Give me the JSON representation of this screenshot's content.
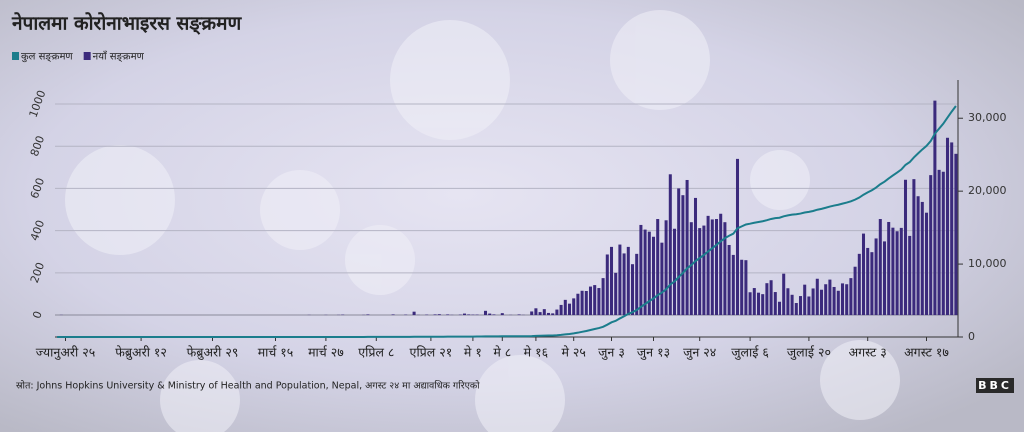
{
  "chart_data": {
    "type": "bar",
    "title": "नेपालमा कोरोनाभाइरस सङ्क्रमण",
    "source": "स्रोत: Johns Hopkins University & Ministry of Health and Population, Nepal, अगस्ट २४ मा अद्यावधिक गरिएको",
    "logo": "BBC",
    "legend": "top-left",
    "grid": true,
    "categories": [
      null,
      null,
      "ज्यानुअरी २५",
      null,
      null,
      null,
      null,
      null,
      null,
      null,
      null,
      null,
      null,
      null,
      null,
      null,
      null,
      null,
      null,
      null,
      "फेब्रुअरी १२",
      null,
      null,
      null,
      null,
      null,
      null,
      null,
      null,
      null,
      null,
      null,
      null,
      null,
      null,
      null,
      null,
      "फेब्रुअरी २९",
      null,
      null,
      null,
      null,
      null,
      null,
      null,
      null,
      null,
      null,
      null,
      null,
      null,
      null,
      "मार्च १५",
      null,
      null,
      null,
      null,
      null,
      null,
      null,
      null,
      null,
      null,
      null,
      "मार्च २७",
      null,
      null,
      null,
      null,
      null,
      null,
      null,
      null,
      null,
      null,
      null,
      "एप्रिल ८",
      null,
      null,
      null,
      null,
      null,
      null,
      null,
      null,
      null,
      null,
      null,
      null,
      "एप्रिल २१",
      null,
      null,
      null,
      null,
      null,
      null,
      null,
      null,
      null,
      "मे १",
      null,
      null,
      null,
      null,
      null,
      null,
      "मे ८",
      null,
      null,
      null,
      null,
      null,
      null,
      null,
      "मे १६",
      null,
      null,
      null,
      null,
      null,
      null,
      null,
      null,
      "मे २५",
      null,
      null,
      null,
      null,
      null,
      null,
      null,
      null,
      "जुन ३",
      null,
      null,
      null,
      null,
      null,
      null,
      null,
      null,
      null,
      "जुन १३",
      null,
      null,
      null,
      null,
      null,
      null,
      null,
      null,
      null,
      null,
      "जुन २४",
      null,
      null,
      null,
      null,
      null,
      null,
      null,
      null,
      null,
      null,
      null,
      "जुलाई ६",
      null,
      null,
      null,
      null,
      null,
      null,
      null,
      null,
      null,
      null,
      null,
      null,
      null,
      "जुलाई २०",
      null,
      null,
      null,
      null,
      null,
      null,
      null,
      null,
      null,
      null,
      null,
      null,
      null,
      "अगस्ट ३",
      null,
      null,
      null,
      null,
      null,
      null,
      null,
      null,
      null,
      null,
      null,
      null,
      null,
      "अगस्ट १७",
      null,
      null,
      null,
      null,
      null,
      null,
      null
    ],
    "series": [
      {
        "name": "कुल सङ्क्रमण",
        "color": "#1b7d8c",
        "type": "line",
        "axis": "y2",
        "values": [
          0,
          1,
          1,
          1,
          1,
          1,
          1,
          1,
          1,
          1,
          1,
          1,
          1,
          1,
          1,
          1,
          1,
          1,
          1,
          1,
          1,
          1,
          1,
          1,
          1,
          1,
          1,
          1,
          1,
          1,
          1,
          1,
          1,
          1,
          1,
          1,
          1,
          1,
          1,
          1,
          1,
          1,
          1,
          1,
          1,
          1,
          1,
          1,
          1,
          1,
          1,
          1,
          1,
          1,
          1,
          1,
          1,
          1,
          1,
          1,
          2,
          2,
          2,
          2,
          3,
          3,
          3,
          4,
          6,
          6,
          6,
          6,
          6,
          7,
          10,
          10,
          10,
          10,
          10,
          10,
          13,
          13,
          13,
          15,
          15,
          31,
          32,
          32,
          34,
          34,
          37,
          41,
          41,
          44,
          45,
          45,
          47,
          54,
          57,
          59,
          61,
          61,
          81,
          88,
          91,
          91,
          100,
          100,
          101,
          101,
          104,
          105,
          105,
          122,
          154,
          168,
          196,
          206,
          214,
          240,
          288,
          360,
          414,
          493,
          594,
          709,
          823,
          958,
          1100,
          1228,
          1403,
          1690,
          2013,
          2213,
          2547,
          2839,
          3162,
          3403,
          3693,
          4120,
          4525,
          4920,
          5291,
          5746,
          6089,
          6538,
          7205,
          7614,
          8214,
          8782,
          9422,
          9862,
          10417,
          10829,
          11253,
          11723,
          12176,
          12631,
          13111,
          13551,
          13883,
          14168,
          14908,
          15170,
          15430,
          15538,
          15666,
          15772,
          15871,
          16022,
          16187,
          16296,
          16359,
          16555,
          16682,
          16778,
          16835,
          16925,
          17069,
          17157,
          17283,
          17455,
          17575,
          17721,
          17889,
          18022,
          18137,
          18287,
          18433,
          18608,
          18837,
          19127,
          19513,
          19831,
          20129,
          20492,
          20947,
          21296,
          21737,
          22151,
          22548,
          22961,
          23602,
          23977,
          24621,
          25184,
          25720,
          26205,
          26868,
          27884,
          28572,
          29251,
          30091,
          30909,
          31673
        ]
      },
      {
        "name": "नयाँ सङ्क्रमण",
        "color": "#3b2a7c",
        "values": [
          0,
          1,
          0,
          0,
          0,
          0,
          0,
          0,
          0,
          0,
          0,
          0,
          0,
          0,
          0,
          0,
          0,
          0,
          0,
          0,
          0,
          0,
          0,
          0,
          0,
          0,
          0,
          0,
          0,
          0,
          0,
          0,
          0,
          0,
          0,
          0,
          0,
          0,
          0,
          0,
          0,
          0,
          0,
          0,
          0,
          0,
          0,
          0,
          0,
          0,
          0,
          0,
          0,
          0,
          0,
          0,
          0,
          0,
          0,
          0,
          1,
          0,
          0,
          0,
          1,
          0,
          0,
          1,
          2,
          0,
          0,
          0,
          0,
          1,
          3,
          0,
          0,
          0,
          0,
          0,
          3,
          0,
          0,
          2,
          0,
          16,
          1,
          0,
          2,
          0,
          3,
          4,
          0,
          3,
          1,
          0,
          2,
          7,
          3,
          2,
          2,
          0,
          20,
          7,
          3,
          0,
          9,
          0,
          1,
          0,
          3,
          1,
          0,
          17,
          32,
          14,
          28,
          10,
          8,
          26,
          48,
          72,
          54,
          79,
          101,
          115,
          114,
          135,
          142,
          128,
          175,
          287,
          323,
          200,
          334,
          292,
          323,
          241,
          290,
          427,
          405,
          395,
          371,
          455,
          343,
          449,
          667,
          409,
          600,
          568,
          640,
          440,
          555,
          412,
          424,
          470,
          453,
          455,
          480,
          440,
          332,
          285,
          740,
          262,
          260,
          108,
          128,
          106,
          99,
          151,
          165,
          109,
          63,
          196,
          127,
          96,
          57,
          90,
          144,
          88,
          126,
          172,
          120,
          146,
          168,
          133,
          115,
          150,
          146,
          175,
          229,
          290,
          386,
          318,
          298,
          363,
          455,
          349,
          441,
          414,
          397,
          413,
          641,
          375,
          644,
          563,
          536,
          485,
          663,
          1016,
          688,
          679,
          840,
          818,
          764
        ]
      }
    ],
    "ylim": [
      -104,
      1019
    ],
    "yticks": [
      0,
      200,
      400,
      600,
      800,
      1000
    ],
    "y2lim": [
      0,
      32500
    ],
    "y2ticks": [
      0,
      {
        "value": 10000,
        "label": "10,000"
      },
      {
        "value": 20000,
        "label": "20,000"
      },
      {
        "value": 30000,
        "label": "30,000"
      }
    ]
  }
}
